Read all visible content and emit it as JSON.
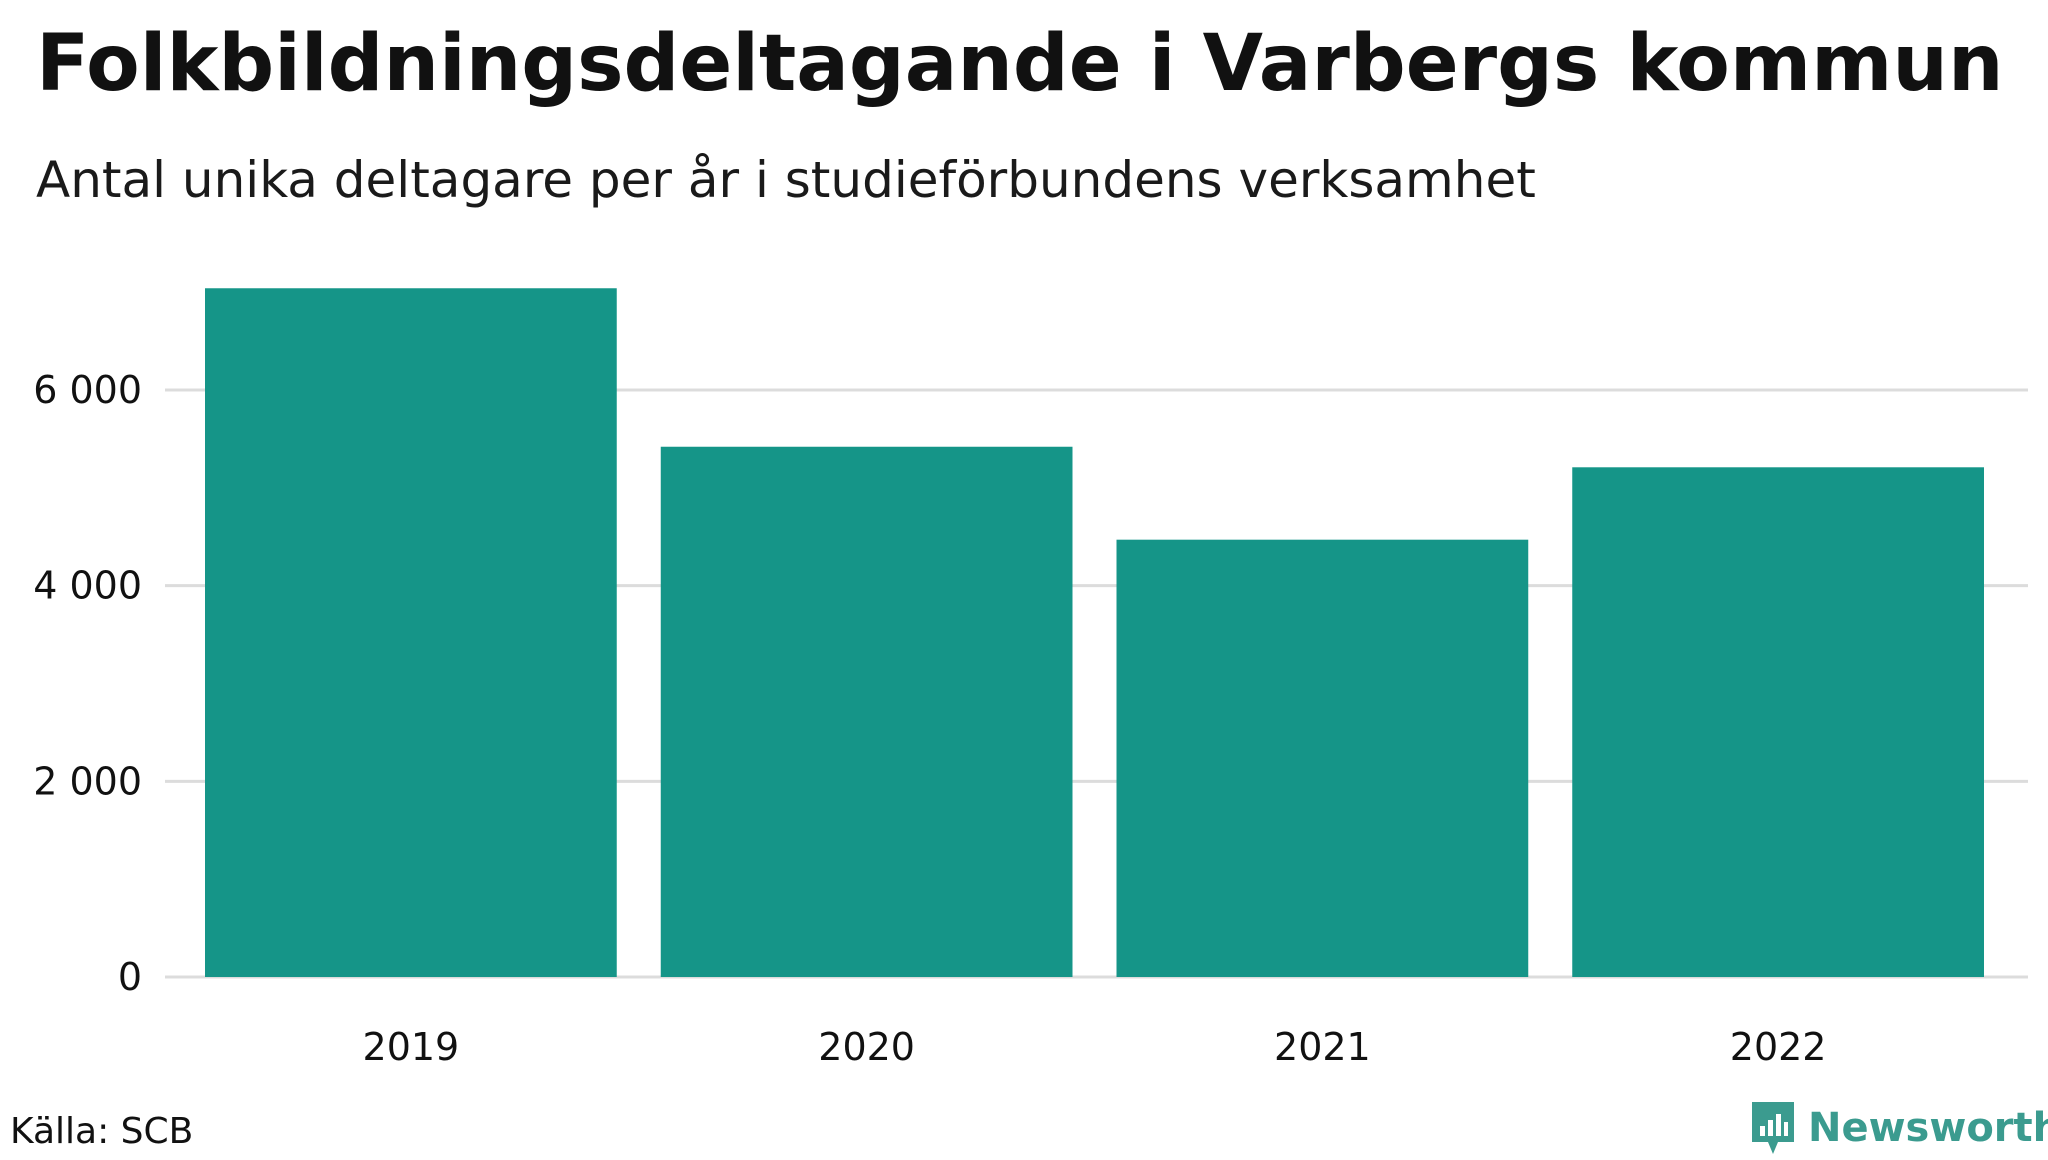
{
  "title": "Folkbildningsdeltagande i Varbergs kommun",
  "subtitle": "Antal unika deltagare per år i studieförbundens verksamhet",
  "source": "Källa: SCB",
  "brand": "Newsworthy",
  "colors": {
    "bar": "#159588",
    "grid": "#dcdcdc",
    "text": "#111111",
    "brand": "#3b9b8f"
  },
  "chart_data": {
    "type": "bar",
    "categories": [
      "2019",
      "2020",
      "2021",
      "2022"
    ],
    "values": [
      7040,
      5420,
      4470,
      5210
    ],
    "ylim": [
      0,
      7200
    ],
    "yticks": [
      0,
      2000,
      4000,
      6000
    ],
    "ytick_labels": [
      "0",
      "2 000",
      "4 000",
      "6 000"
    ],
    "grid": true,
    "xlabel": "",
    "ylabel": ""
  }
}
